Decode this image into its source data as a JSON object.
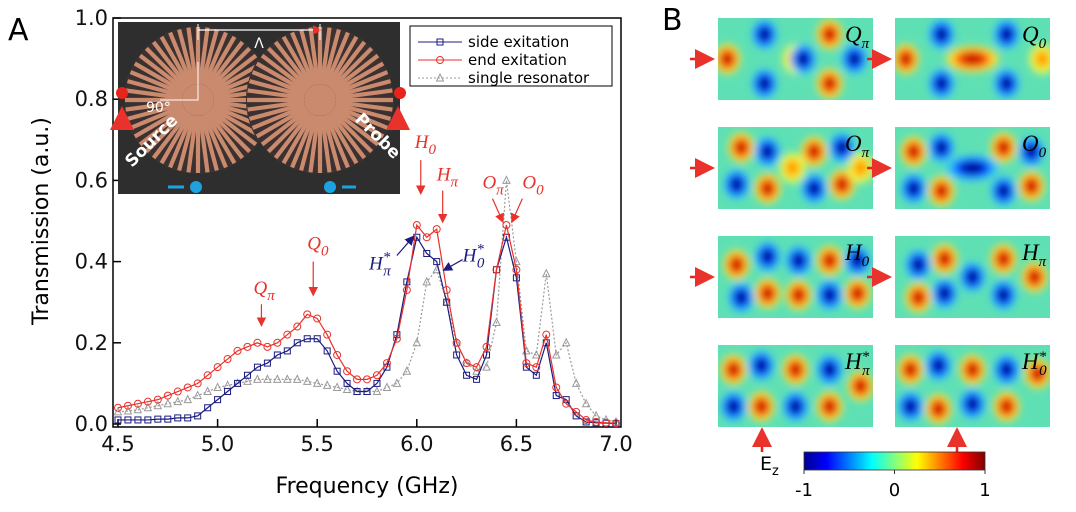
{
  "panel_labels": [
    "A",
    "B"
  ],
  "chart_data": {
    "type": "line",
    "x_label": "Frequency (GHz)",
    "y_label": "Transmission (a.u.)",
    "x": [
      4.5,
      4.55,
      4.6,
      4.65,
      4.7,
      4.75,
      4.8,
      4.85,
      4.9,
      4.95,
      5,
      5.05,
      5.1,
      5.15,
      5.2,
      5.25,
      5.3,
      5.35,
      5.4,
      5.45,
      5.5,
      5.55,
      5.6,
      5.65,
      5.7,
      5.75,
      5.8,
      5.85,
      5.9,
      5.95,
      6,
      6.05,
      6.1,
      6.15,
      6.2,
      6.25,
      6.3,
      6.35,
      6.4,
      6.45,
      6.5,
      6.55,
      6.6,
      6.65,
      6.7,
      6.75,
      6.8,
      6.85,
      6.9,
      6.95,
      7
    ],
    "series": [
      {
        "name": "side exitation",
        "color": "#1c1c80",
        "marker": "square",
        "values": [
          0.01,
          0.01,
          0.01,
          0.01,
          0.012,
          0.012,
          0.015,
          0.015,
          0.02,
          0.04,
          0.06,
          0.08,
          0.1,
          0.12,
          0.14,
          0.15,
          0.17,
          0.18,
          0.2,
          0.21,
          0.21,
          0.18,
          0.13,
          0.1,
          0.08,
          0.08,
          0.1,
          0.14,
          0.22,
          0.35,
          0.46,
          0.42,
          0.4,
          0.3,
          0.17,
          0.12,
          0.11,
          0.17,
          0.38,
          0.46,
          0.36,
          0.14,
          0.12,
          0.2,
          0.07,
          0.06,
          0.02,
          0.005,
          0.003,
          0.002,
          0.001
        ]
      },
      {
        "name": "end exitation",
        "color": "#e8322b",
        "marker": "circle",
        "values": [
          0.04,
          0.045,
          0.05,
          0.055,
          0.06,
          0.07,
          0.08,
          0.09,
          0.1,
          0.12,
          0.14,
          0.16,
          0.18,
          0.19,
          0.2,
          0.19,
          0.2,
          0.22,
          0.24,
          0.27,
          0.26,
          0.22,
          0.17,
          0.13,
          0.11,
          0.11,
          0.12,
          0.15,
          0.21,
          0.33,
          0.49,
          0.46,
          0.48,
          0.33,
          0.2,
          0.15,
          0.14,
          0.19,
          0.38,
          0.49,
          0.38,
          0.15,
          0.14,
          0.22,
          0.09,
          0.05,
          0.03,
          0.01,
          0.005,
          0.003,
          0.002
        ]
      },
      {
        "name": "single resonator",
        "color": "#9a9a9a",
        "marker": "triangle",
        "values": [
          0.03,
          0.032,
          0.035,
          0.04,
          0.045,
          0.05,
          0.055,
          0.06,
          0.07,
          0.08,
          0.09,
          0.095,
          0.1,
          0.105,
          0.11,
          0.11,
          0.11,
          0.11,
          0.11,
          0.105,
          0.1,
          0.095,
          0.09,
          0.085,
          0.08,
          0.08,
          0.08,
          0.09,
          0.1,
          0.13,
          0.2,
          0.35,
          0.38,
          0.3,
          0.2,
          0.15,
          0.13,
          0.14,
          0.25,
          0.6,
          0.4,
          0.18,
          0.17,
          0.37,
          0.17,
          0.2,
          0.1,
          0.05,
          0.02,
          0.01,
          0.005
        ]
      }
    ],
    "xlim": [
      4.5,
      7.0
    ],
    "ylim": [
      0,
      1.0
    ],
    "xticks": [
      4.5,
      {
        "value": 5,
        "label": "5.0"
      },
      5.5,
      {
        "value": 6,
        "label": "6.0"
      },
      6.5,
      {
        "value": 7,
        "label": "7.0"
      }
    ],
    "yticks": [
      {
        "value": 0,
        "label": "0.0"
      },
      0.2,
      0.4,
      0.6,
      0.8,
      {
        "value": 1,
        "label": "1.0"
      }
    ],
    "annotations": [
      {
        "text": "Q",
        "sub": "π",
        "color": "#e8322b"
      },
      {
        "text": "Q",
        "sub": "0",
        "color": "#e8322b"
      },
      {
        "text": "H",
        "sub": "0",
        "color": "#e8322b"
      },
      {
        "text": "H",
        "sub": "π",
        "color": "#e8322b"
      },
      {
        "text": "O",
        "sub": "π",
        "color": "#e8322b"
      },
      {
        "text": "O",
        "sub": "0",
        "color": "#e8322b"
      },
      {
        "text": "H",
        "sup": "*",
        "sub": "π",
        "color": "#1c1c80"
      },
      {
        "text": "H",
        "sup": "*",
        "sub": "0",
        "color": "#1c1c80"
      }
    ],
    "inset": {
      "texts": [
        "Λ",
        "90°",
        "Source",
        "Probe"
      ]
    }
  },
  "field_maps": {
    "maps": [
      {
        "text": "Q",
        "sub": "π"
      },
      {
        "text": "Q",
        "sub": "0"
      },
      {
        "text": "O",
        "sub": "π"
      },
      {
        "text": "O",
        "sub": "0"
      },
      {
        "text": "H",
        "sub": "0"
      },
      {
        "text": "H",
        "sub": "π"
      },
      {
        "text": "H",
        "sup": "*",
        "sub": "π"
      },
      {
        "text": "H",
        "sup": "*",
        "sub": "0"
      }
    ],
    "colorbar": {
      "label": "E",
      "sub": "z",
      "ticks": [
        -1,
        0,
        1
      ]
    }
  }
}
